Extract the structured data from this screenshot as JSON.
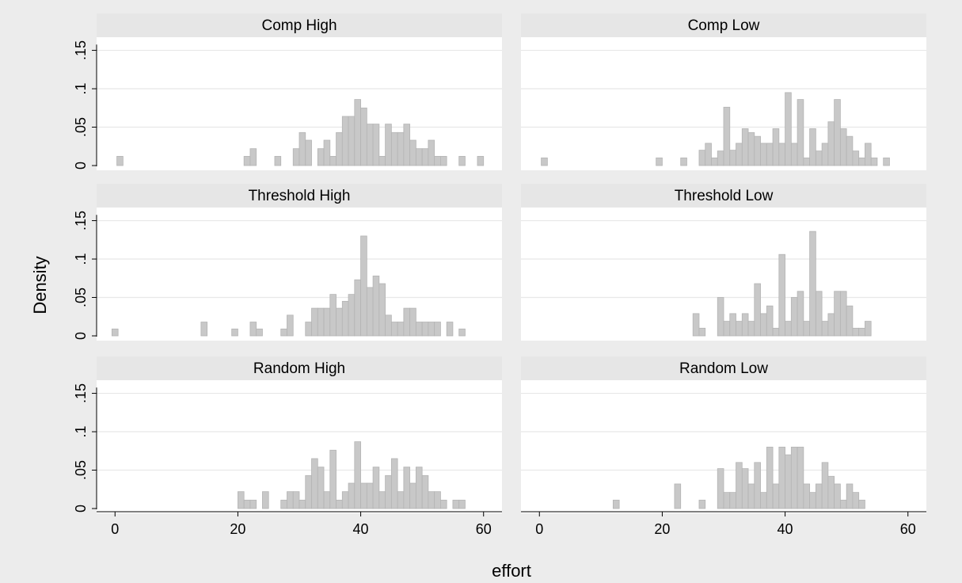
{
  "chart_data": {
    "type": "bar",
    "xlabel": "effort",
    "ylabel": "Density",
    "xlim": [
      -3,
      63
    ],
    "ylim": [
      0,
      0.165
    ],
    "xticks": [
      0,
      20,
      40,
      60
    ],
    "xtick_labels": [
      "0",
      "20",
      "40",
      "60"
    ],
    "yticks": [
      0,
      0.05,
      0.1,
      0.15
    ],
    "ytick_labels": [
      "0",
      ".05",
      ".1",
      ".15"
    ],
    "grid": true,
    "colors": {
      "background": "#ececec",
      "plot_region": "#ffffff",
      "panel_header": "#e6e6e6",
      "bar_fill": "#c8c8c8",
      "bar_stroke": "#b4b4b4",
      "gridline": "#e8e8e8",
      "axis": "#000000"
    },
    "panels": [
      {
        "title": "Comp High",
        "bars": [
          {
            "x": 0.8,
            "y": 0.012
          },
          {
            "x": 21.5,
            "y": 0.012
          },
          {
            "x": 22.5,
            "y": 0.022
          },
          {
            "x": 26.5,
            "y": 0.012
          },
          {
            "x": 29.5,
            "y": 0.022
          },
          {
            "x": 30.5,
            "y": 0.043
          },
          {
            "x": 31.5,
            "y": 0.033
          },
          {
            "x": 33.5,
            "y": 0.022
          },
          {
            "x": 34.5,
            "y": 0.033
          },
          {
            "x": 35.5,
            "y": 0.012
          },
          {
            "x": 36.5,
            "y": 0.043
          },
          {
            "x": 37.5,
            "y": 0.064
          },
          {
            "x": 38.5,
            "y": 0.064
          },
          {
            "x": 39.5,
            "y": 0.086
          },
          {
            "x": 40.5,
            "y": 0.075
          },
          {
            "x": 41.5,
            "y": 0.054
          },
          {
            "x": 42.5,
            "y": 0.054
          },
          {
            "x": 43.5,
            "y": 0.012
          },
          {
            "x": 44.5,
            "y": 0.054
          },
          {
            "x": 45.5,
            "y": 0.043
          },
          {
            "x": 46.5,
            "y": 0.043
          },
          {
            "x": 47.5,
            "y": 0.054
          },
          {
            "x": 48.5,
            "y": 0.033
          },
          {
            "x": 49.5,
            "y": 0.022
          },
          {
            "x": 50.5,
            "y": 0.022
          },
          {
            "x": 51.5,
            "y": 0.033
          },
          {
            "x": 52.5,
            "y": 0.012
          },
          {
            "x": 53.5,
            "y": 0.012
          },
          {
            "x": 56.5,
            "y": 0.012
          },
          {
            "x": 59.5,
            "y": 0.012
          }
        ]
      },
      {
        "title": "Comp Low",
        "bars": [
          {
            "x": 0.8,
            "y": 0.01
          },
          {
            "x": 19.5,
            "y": 0.01
          },
          {
            "x": 23.5,
            "y": 0.01
          },
          {
            "x": 26.5,
            "y": 0.02
          },
          {
            "x": 27.5,
            "y": 0.029
          },
          {
            "x": 28.5,
            "y": 0.01
          },
          {
            "x": 29.5,
            "y": 0.019
          },
          {
            "x": 30.5,
            "y": 0.076
          },
          {
            "x": 31.5,
            "y": 0.02
          },
          {
            "x": 32.5,
            "y": 0.029
          },
          {
            "x": 33.5,
            "y": 0.048
          },
          {
            "x": 34.5,
            "y": 0.043
          },
          {
            "x": 35.5,
            "y": 0.038
          },
          {
            "x": 36.5,
            "y": 0.029
          },
          {
            "x": 37.5,
            "y": 0.029
          },
          {
            "x": 38.5,
            "y": 0.048
          },
          {
            "x": 39.5,
            "y": 0.029
          },
          {
            "x": 40.5,
            "y": 0.095
          },
          {
            "x": 41.5,
            "y": 0.029
          },
          {
            "x": 42.5,
            "y": 0.086
          },
          {
            "x": 43.5,
            "y": 0.01
          },
          {
            "x": 44.5,
            "y": 0.048
          },
          {
            "x": 45.5,
            "y": 0.019
          },
          {
            "x": 46.5,
            "y": 0.029
          },
          {
            "x": 47.5,
            "y": 0.057
          },
          {
            "x": 48.5,
            "y": 0.086
          },
          {
            "x": 49.5,
            "y": 0.048
          },
          {
            "x": 50.5,
            "y": 0.038
          },
          {
            "x": 51.5,
            "y": 0.019
          },
          {
            "x": 52.5,
            "y": 0.01
          },
          {
            "x": 53.5,
            "y": 0.029
          },
          {
            "x": 54.5,
            "y": 0.01
          },
          {
            "x": 56.5,
            "y": 0.01
          }
        ]
      },
      {
        "title": "Threshold High",
        "bars": [
          {
            "x": 0,
            "y": 0.009
          },
          {
            "x": 14.5,
            "y": 0.018
          },
          {
            "x": 19.5,
            "y": 0.009
          },
          {
            "x": 22.5,
            "y": 0.018
          },
          {
            "x": 23.5,
            "y": 0.009
          },
          {
            "x": 27.5,
            "y": 0.009
          },
          {
            "x": 28.5,
            "y": 0.027
          },
          {
            "x": 31.5,
            "y": 0.018
          },
          {
            "x": 32.5,
            "y": 0.036
          },
          {
            "x": 33.5,
            "y": 0.036
          },
          {
            "x": 34.5,
            "y": 0.036
          },
          {
            "x": 35.5,
            "y": 0.054
          },
          {
            "x": 36.5,
            "y": 0.036
          },
          {
            "x": 37.5,
            "y": 0.045
          },
          {
            "x": 38.5,
            "y": 0.054
          },
          {
            "x": 39.5,
            "y": 0.073
          },
          {
            "x": 40.5,
            "y": 0.13
          },
          {
            "x": 41.5,
            "y": 0.063
          },
          {
            "x": 42.5,
            "y": 0.078
          },
          {
            "x": 43.5,
            "y": 0.068
          },
          {
            "x": 44.5,
            "y": 0.027
          },
          {
            "x": 45.5,
            "y": 0.018
          },
          {
            "x": 46.5,
            "y": 0.018
          },
          {
            "x": 47.5,
            "y": 0.036
          },
          {
            "x": 48.5,
            "y": 0.036
          },
          {
            "x": 49.5,
            "y": 0.018
          },
          {
            "x": 50.5,
            "y": 0.018
          },
          {
            "x": 51.5,
            "y": 0.018
          },
          {
            "x": 52.5,
            "y": 0.018
          },
          {
            "x": 54.5,
            "y": 0.018
          },
          {
            "x": 56.5,
            "y": 0.009
          }
        ]
      },
      {
        "title": "Threshold Low",
        "bars": [
          {
            "x": 25.5,
            "y": 0.029
          },
          {
            "x": 26.5,
            "y": 0.01
          },
          {
            "x": 29.5,
            "y": 0.05
          },
          {
            "x": 30.5,
            "y": 0.019
          },
          {
            "x": 31.5,
            "y": 0.029
          },
          {
            "x": 32.5,
            "y": 0.019
          },
          {
            "x": 33.5,
            "y": 0.029
          },
          {
            "x": 34.5,
            "y": 0.019
          },
          {
            "x": 35.5,
            "y": 0.068
          },
          {
            "x": 36.5,
            "y": 0.029
          },
          {
            "x": 37.5,
            "y": 0.039
          },
          {
            "x": 38.5,
            "y": 0.01
          },
          {
            "x": 39.5,
            "y": 0.106
          },
          {
            "x": 40.5,
            "y": 0.019
          },
          {
            "x": 41.5,
            "y": 0.05
          },
          {
            "x": 42.5,
            "y": 0.058
          },
          {
            "x": 43.5,
            "y": 0.019
          },
          {
            "x": 44.5,
            "y": 0.136
          },
          {
            "x": 45.5,
            "y": 0.058
          },
          {
            "x": 46.5,
            "y": 0.019
          },
          {
            "x": 47.5,
            "y": 0.029
          },
          {
            "x": 48.5,
            "y": 0.058
          },
          {
            "x": 49.5,
            "y": 0.058
          },
          {
            "x": 50.5,
            "y": 0.039
          },
          {
            "x": 51.5,
            "y": 0.01
          },
          {
            "x": 52.5,
            "y": 0.01
          },
          {
            "x": 53.5,
            "y": 0.019
          }
        ]
      },
      {
        "title": "Random High",
        "bars": [
          {
            "x": 20.5,
            "y": 0.022
          },
          {
            "x": 21.5,
            "y": 0.011
          },
          {
            "x": 22.5,
            "y": 0.011
          },
          {
            "x": 24.5,
            "y": 0.022
          },
          {
            "x": 27.5,
            "y": 0.011
          },
          {
            "x": 28.5,
            "y": 0.022
          },
          {
            "x": 29.5,
            "y": 0.022
          },
          {
            "x": 30.5,
            "y": 0.011
          },
          {
            "x": 31.5,
            "y": 0.043
          },
          {
            "x": 32.5,
            "y": 0.065
          },
          {
            "x": 33.5,
            "y": 0.054
          },
          {
            "x": 34.5,
            "y": 0.022
          },
          {
            "x": 35.5,
            "y": 0.076
          },
          {
            "x": 36.5,
            "y": 0.011
          },
          {
            "x": 37.5,
            "y": 0.022
          },
          {
            "x": 38.5,
            "y": 0.033
          },
          {
            "x": 39.5,
            "y": 0.087
          },
          {
            "x": 40.5,
            "y": 0.033
          },
          {
            "x": 41.5,
            "y": 0.033
          },
          {
            "x": 42.5,
            "y": 0.054
          },
          {
            "x": 43.5,
            "y": 0.022
          },
          {
            "x": 44.5,
            "y": 0.043
          },
          {
            "x": 45.5,
            "y": 0.065
          },
          {
            "x": 46.5,
            "y": 0.022
          },
          {
            "x": 47.5,
            "y": 0.054
          },
          {
            "x": 48.5,
            "y": 0.033
          },
          {
            "x": 49.5,
            "y": 0.054
          },
          {
            "x": 50.5,
            "y": 0.043
          },
          {
            "x": 51.5,
            "y": 0.022
          },
          {
            "x": 52.5,
            "y": 0.022
          },
          {
            "x": 53.5,
            "y": 0.011
          },
          {
            "x": 55.5,
            "y": 0.011
          },
          {
            "x": 56.5,
            "y": 0.011
          }
        ]
      },
      {
        "title": "Random Low",
        "bars": [
          {
            "x": 12.5,
            "y": 0.011
          },
          {
            "x": 22.5,
            "y": 0.032
          },
          {
            "x": 26.5,
            "y": 0.011
          },
          {
            "x": 29.5,
            "y": 0.052
          },
          {
            "x": 30.5,
            "y": 0.021
          },
          {
            "x": 31.5,
            "y": 0.021
          },
          {
            "x": 32.5,
            "y": 0.06
          },
          {
            "x": 33.5,
            "y": 0.052
          },
          {
            "x": 34.5,
            "y": 0.032
          },
          {
            "x": 35.5,
            "y": 0.06
          },
          {
            "x": 36.5,
            "y": 0.021
          },
          {
            "x": 37.5,
            "y": 0.08
          },
          {
            "x": 38.5,
            "y": 0.032
          },
          {
            "x": 39.5,
            "y": 0.08
          },
          {
            "x": 40.5,
            "y": 0.07
          },
          {
            "x": 41.5,
            "y": 0.08
          },
          {
            "x": 42.5,
            "y": 0.08
          },
          {
            "x": 43.5,
            "y": 0.032
          },
          {
            "x": 44.5,
            "y": 0.021
          },
          {
            "x": 45.5,
            "y": 0.032
          },
          {
            "x": 46.5,
            "y": 0.06
          },
          {
            "x": 47.5,
            "y": 0.042
          },
          {
            "x": 48.5,
            "y": 0.032
          },
          {
            "x": 49.5,
            "y": 0.011
          },
          {
            "x": 50.5,
            "y": 0.032
          },
          {
            "x": 51.5,
            "y": 0.021
          },
          {
            "x": 52.5,
            "y": 0.011
          }
        ]
      }
    ]
  }
}
